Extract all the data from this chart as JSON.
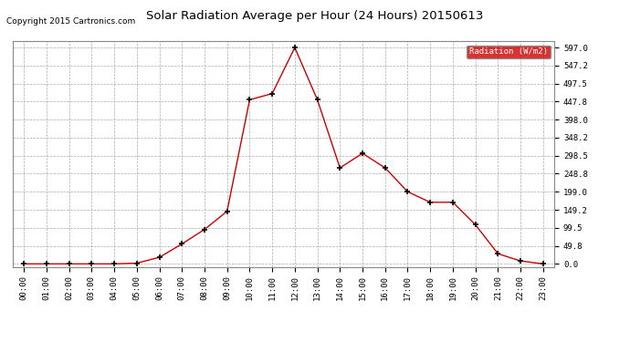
{
  "title": "Solar Radiation Average per Hour (24 Hours) 20150613",
  "copyright": "Copyright 2015 Cartronics.com",
  "legend_label": "Radiation (W/m2)",
  "hours": [
    "00:00",
    "01:00",
    "02:00",
    "03:00",
    "04:00",
    "05:00",
    "06:00",
    "07:00",
    "08:00",
    "09:00",
    "10:00",
    "11:00",
    "12:00",
    "13:00",
    "14:00",
    "15:00",
    "16:00",
    "17:00",
    "18:00",
    "19:00",
    "20:00",
    "21:00",
    "22:00",
    "23:00"
  ],
  "values": [
    0.0,
    0.0,
    0.0,
    0.0,
    0.0,
    2.0,
    18.0,
    55.0,
    95.0,
    145.0,
    453.0,
    470.0,
    597.0,
    453.0,
    265.0,
    305.0,
    265.0,
    199.0,
    170.0,
    170.0,
    108.0,
    28.0,
    8.0,
    0.0
  ],
  "line_color": "#cc0000",
  "marker_color": "#000000",
  "bg_color": "#ffffff",
  "grid_color": "#aaaaaa",
  "legend_bg": "#cc0000",
  "legend_text_color": "#ffffff",
  "title_color": "#000000",
  "copyright_color": "#000000",
  "yticks": [
    0.0,
    49.8,
    99.5,
    149.2,
    199.0,
    248.8,
    298.5,
    348.2,
    398.0,
    447.8,
    497.5,
    547.2,
    597.0
  ],
  "ymax": 615.0,
  "ymin": -8.0,
  "figwidth": 6.9,
  "figheight": 3.75,
  "dpi": 100
}
